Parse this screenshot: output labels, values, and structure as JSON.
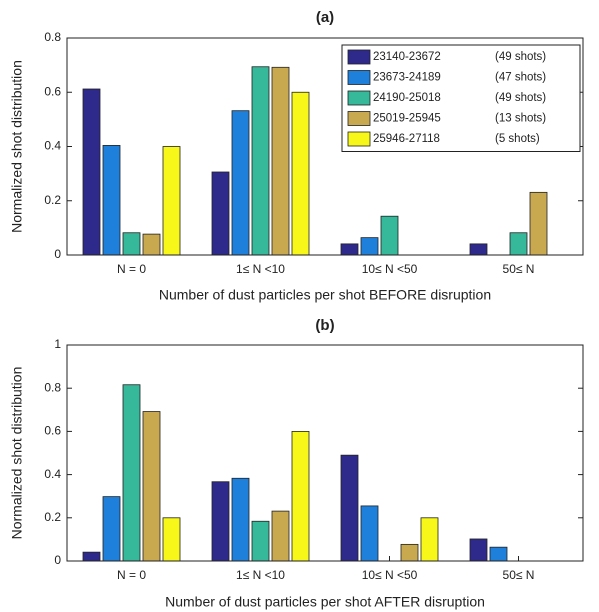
{
  "chart_data": [
    {
      "type": "bar",
      "title": "(a)",
      "x_label": "Number of dust particles per shot BEFORE disruption",
      "y_label": "Normalized shot distribution",
      "categories": [
        "N = 0",
        "1≤ N <10",
        "10≤ N <50",
        "50≤ N"
      ],
      "ylim": [
        0,
        0.8
      ],
      "yticks": [
        0,
        0.2,
        0.4,
        0.6,
        0.8
      ],
      "legend": "upper right",
      "series": [
        {
          "name": "23140-23672",
          "shots": "(49 shots)",
          "color": "#2e2a8c",
          "values": [
            0.612,
            0.306,
            0.041,
            0.041
          ]
        },
        {
          "name": "23673-24189",
          "shots": "(47 shots)",
          "color": "#1f80dc",
          "values": [
            0.404,
            0.532,
            0.064,
            0
          ]
        },
        {
          "name": "24190-25018",
          "shots": "(49 shots)",
          "color": "#35b99a",
          "values": [
            0.082,
            0.694,
            0.143,
            0.082
          ]
        },
        {
          "name": "25019-25945",
          "shots": "(13 shots)",
          "color": "#c9a94f",
          "values": [
            0.077,
            0.692,
            0,
            0.231
          ]
        },
        {
          "name": "25946-27118",
          "shots": "(5 shots)",
          "color": "#f7f71a",
          "values": [
            0.4,
            0.6,
            0,
            0
          ]
        }
      ]
    },
    {
      "type": "bar",
      "title": "(b)",
      "x_label": "Number of dust particles per shot AFTER disruption",
      "y_label": "Normalized shot distribution",
      "categories": [
        "N = 0",
        "1≤ N <10",
        "10≤ N <50",
        "50≤ N"
      ],
      "ylim": [
        0,
        1
      ],
      "yticks": [
        0,
        0.2,
        0.4,
        0.6,
        0.8,
        1
      ],
      "series": [
        {
          "color": "#2e2a8c",
          "values": [
            0.041,
            0.367,
            0.49,
            0.102
          ]
        },
        {
          "color": "#1f80dc",
          "values": [
            0.298,
            0.383,
            0.255,
            0.064
          ]
        },
        {
          "color": "#35b99a",
          "values": [
            0.816,
            0.184,
            0,
            0
          ]
        },
        {
          "color": "#c9a94f",
          "values": [
            0.692,
            0.231,
            0.077,
            0
          ]
        },
        {
          "color": "#f7f71a",
          "values": [
            0.2,
            0.6,
            0.2,
            0
          ]
        }
      ]
    }
  ]
}
